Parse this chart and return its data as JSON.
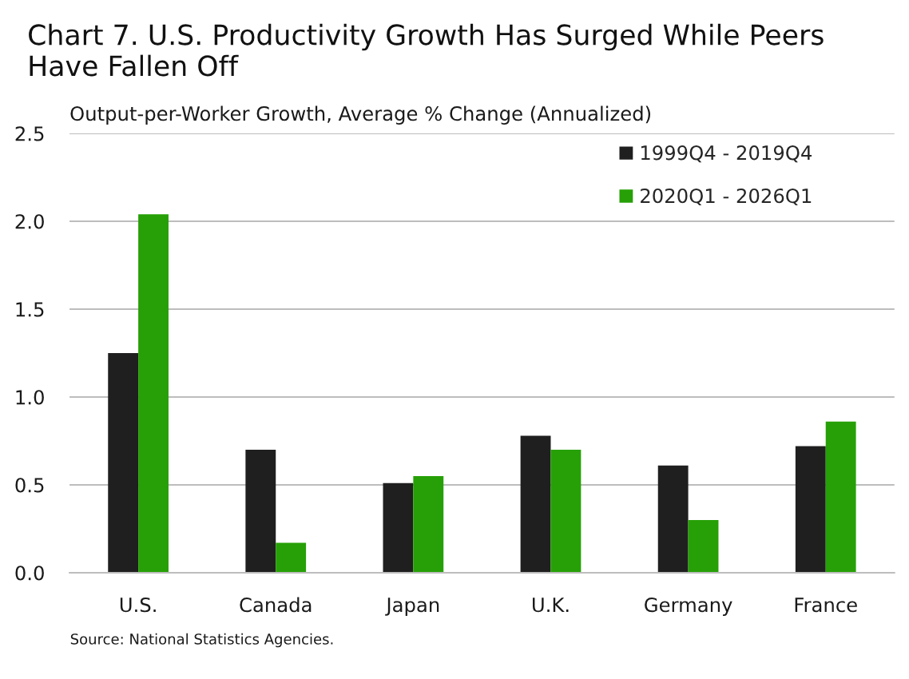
{
  "chart_data": {
    "type": "bar",
    "title": "Chart 7. U.S. Productivity Growth Has Surged While Peers Have Fallen Off",
    "ylabel": "Output-per-Worker Growth, Average % Change (Annualized)",
    "categories": [
      "U.S.",
      "Canada",
      "Japan",
      "U.K.",
      "Germany",
      "France"
    ],
    "series": [
      {
        "name": "1999Q4 - 2019Q4",
        "color": "#1f1f1f",
        "values": [
          1.25,
          0.7,
          0.51,
          0.78,
          0.61,
          0.72
        ]
      },
      {
        "name": "2020Q1 - 2026Q1",
        "color": "#26a006",
        "values": [
          2.04,
          0.17,
          0.55,
          0.7,
          0.3,
          0.86
        ]
      }
    ],
    "ylim": [
      0,
      2.5
    ],
    "yticks": [
      {
        "value": 0,
        "label": "0.0"
      },
      {
        "value": 0.5,
        "label": "0.5"
      },
      {
        "value": 1,
        "label": "1.0"
      },
      {
        "value": 1.5,
        "label": "1.5"
      },
      {
        "value": 2,
        "label": "2.0"
      },
      {
        "value": 2.5,
        "label": "2.5"
      }
    ],
    "grid": "y",
    "legend": "top right",
    "annotations": [
      "Source: National Statistics Agencies."
    ]
  }
}
